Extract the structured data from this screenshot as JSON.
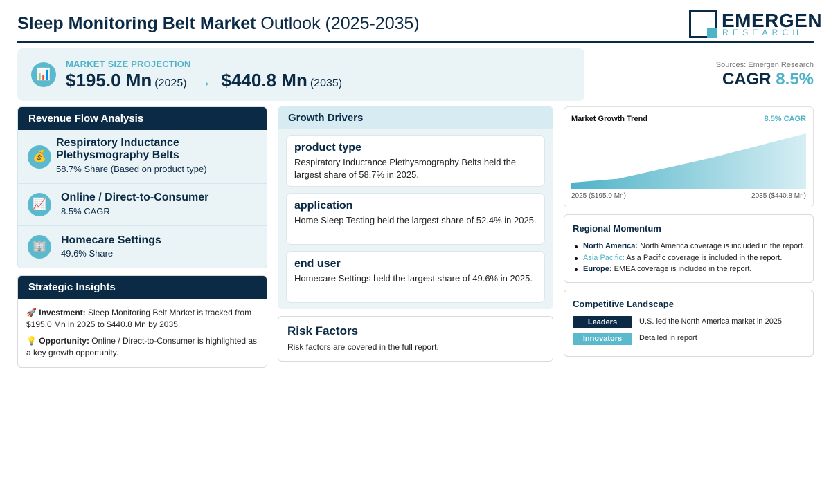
{
  "header": {
    "title_bold": "Sleep Monitoring Belt Market",
    "title_rest": " Outlook (2025-2035)",
    "logo_main": "EMERGEN",
    "logo_sub": "RESEARCH"
  },
  "projection": {
    "label": "MARKET SIZE PROJECTION",
    "start_value": "$195.0 Mn",
    "start_year": "(2025)",
    "arrow": "→",
    "end_value": "$440.8 Mn",
    "end_year": "(2035)",
    "icon": "bar-chart-icon"
  },
  "cagr": {
    "sources": "Sources: Emergen Research",
    "label": "CAGR ",
    "value": "8.5%"
  },
  "revenue_flow": {
    "title": "Revenue Flow Analysis",
    "items": [
      {
        "icon": "money-bag-icon",
        "glyph": "💰",
        "name": "Respiratory Inductance Plethysmography Belts",
        "sub": "58.7% Share (Based on product type)"
      },
      {
        "icon": "trend-chart-icon",
        "glyph": "📈",
        "name": "Online / Direct-to-Consumer",
        "sub": "8.5% CAGR"
      },
      {
        "icon": "building-icon",
        "glyph": "🏢",
        "name": "Homecare Settings",
        "sub": "49.6% Share"
      }
    ]
  },
  "insights": {
    "title": "Strategic Insights",
    "investment_label": "Investment:",
    "investment_text": " Sleep Monitoring Belt Market is tracked from $195.0 Mn in 2025 to $440.8 Mn by 2035.",
    "opportunity_label": "Opportunity:",
    "opportunity_text": " Online / Direct-to-Consumer is highlighted as a key growth opportunity."
  },
  "drivers": {
    "title": "Growth Drivers",
    "cards": [
      {
        "title": "product type",
        "desc": "Respiratory Inductance Plethysmography Belts held the largest share of 58.7% in 2025."
      },
      {
        "title": "application",
        "desc": "Home Sleep Testing held the largest share of 52.4% in 2025."
      },
      {
        "title": "end user",
        "desc": "Homecare Settings held the largest share of 49.6% in 2025."
      }
    ]
  },
  "risk": {
    "title": "Risk Factors",
    "desc": "Risk factors are covered in the full report."
  },
  "trend": {
    "title": "Market Growth Trend",
    "cagr": "8.5% CAGR",
    "start_label": "2025 ($195.0 Mn)",
    "end_label": "2035 ($440.8 Mn)"
  },
  "chart_data": {
    "type": "area",
    "x": [
      2025,
      2027,
      2031,
      2035
    ],
    "values": [
      195.0,
      215,
      320,
      440.8
    ],
    "title": "Market Growth Trend",
    "colors": {
      "start": "#4fb3c8",
      "end": "#d6eef4"
    }
  },
  "regional": {
    "title": "Regional Momentum",
    "items": [
      {
        "name": "North America:",
        "text": " North America coverage is included in the report."
      },
      {
        "name": "Asia Pacific:",
        "text": " Asia Pacific coverage is included in the report."
      },
      {
        "name": "Europe:",
        "text": " EMEA coverage is included in the report."
      }
    ]
  },
  "competitive": {
    "title": "Competitive Landscape",
    "rows": [
      {
        "badge": "Leaders",
        "color": "#0b2a45",
        "text": "U.S. led the North America market in 2025."
      },
      {
        "badge": "Innovators",
        "color": "#5ab9cc",
        "text": "Detailed in report"
      }
    ]
  },
  "colors": {
    "navy": "#0b2a45",
    "teal": "#4fb3c8",
    "panel_bg": "#eaf4f7"
  }
}
